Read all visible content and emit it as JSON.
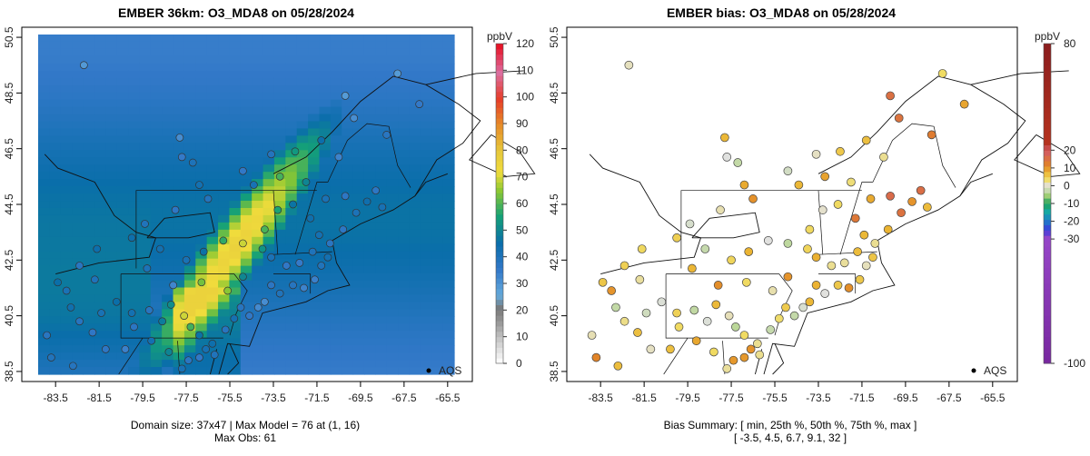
{
  "chart_data": [
    {
      "type": "heatmap",
      "title": "EMBER 36km: O3_MDA8 on 05/28/2024",
      "x_ticks": [
        "-83.5",
        "-81.5",
        "-79.5",
        "-77.5",
        "-75.5",
        "-73.5",
        "-71.5",
        "-69.5",
        "-67.5",
        "-65.5"
      ],
      "y_ticks": [
        "38.5",
        "40.5",
        "42.5",
        "44.5",
        "46.5",
        "48.5",
        "50.5"
      ],
      "xlim": [
        -84.3,
        -65.2
      ],
      "ylim": [
        38.4,
        50.6
      ],
      "colorbar": {
        "unit": "ppbV",
        "ticks": [
          "0",
          "10",
          "20",
          "30",
          "40",
          "50",
          "60",
          "70",
          "80",
          "90",
          "100",
          "110",
          "120"
        ],
        "range": [
          0,
          120
        ]
      },
      "legend_label": "AQS",
      "footer_line1": "Domain size: 37x47 | Max Model = 76 at (1, 16)",
      "footer_line2": "Max Obs: 61"
    },
    {
      "type": "scatter",
      "title": "EMBER bias: O3_MDA8 on 05/28/2024",
      "x_ticks": [
        "-83.5",
        "-81.5",
        "-79.5",
        "-77.5",
        "-75.5",
        "-73.5",
        "-71.5",
        "-69.5",
        "-67.5",
        "-65.5"
      ],
      "y_ticks": [
        "38.5",
        "40.5",
        "42.5",
        "44.5",
        "46.5",
        "48.5",
        "50.5"
      ],
      "xlim": [
        -84.3,
        -65.2
      ],
      "ylim": [
        38.4,
        50.6
      ],
      "colorbar": {
        "unit": "ppbV",
        "ticks": [
          "-100",
          "-30",
          "-20",
          "-10",
          "0",
          "10",
          "20",
          "80"
        ],
        "range": [
          -100,
          80
        ]
      },
      "legend_label": "AQS",
      "footer_line1": "Bias Summary: [ min, 25th %, 50th %, 75th %, max ]",
      "footer_line2": "[ -3.5,   4.5,   6.7,   9.1,   32 ]"
    }
  ]
}
